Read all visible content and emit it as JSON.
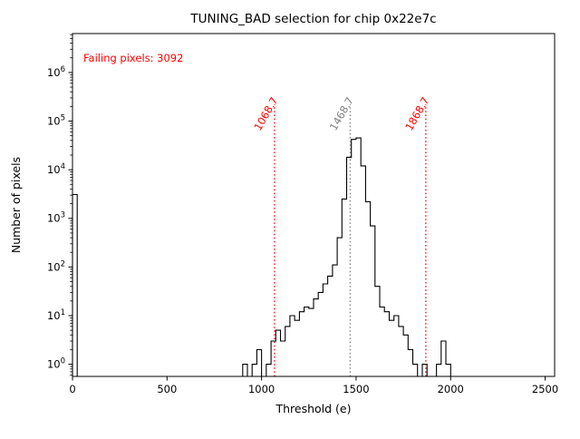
{
  "chart_data": {
    "type": "bar",
    "title": "TUNING_BAD selection for chip 0x22e7c",
    "xlabel": "Threshold (e)",
    "ylabel": "Number of pixels",
    "annotation": "Failing pixels: 3092",
    "failing_pixels": 3092,
    "xlim": [
      0,
      2550
    ],
    "ylog": true,
    "ylim_exponents": [
      -0.25,
      6.8
    ],
    "x_ticks": [
      0,
      500,
      1000,
      1500,
      2000,
      2500
    ],
    "y_tick_exponents": [
      0,
      1,
      2,
      3,
      4,
      5,
      6
    ],
    "grid": false,
    "legend": "none",
    "colors": {
      "hist": "#000000",
      "fail": "#ff0000",
      "center": "#808080",
      "annotation": "#ff0000"
    },
    "histogram": {
      "bin_width": 25,
      "bins": [
        [
          0,
          3092
        ],
        [
          900,
          1
        ],
        [
          950,
          1
        ],
        [
          975,
          2
        ],
        [
          1025,
          1
        ],
        [
          1050,
          3
        ],
        [
          1075,
          5
        ],
        [
          1100,
          3
        ],
        [
          1125,
          6
        ],
        [
          1150,
          10
        ],
        [
          1175,
          8
        ],
        [
          1200,
          12
        ],
        [
          1225,
          15
        ],
        [
          1250,
          14
        ],
        [
          1275,
          22
        ],
        [
          1300,
          30
        ],
        [
          1325,
          45
        ],
        [
          1350,
          65
        ],
        [
          1375,
          110
        ],
        [
          1400,
          400
        ],
        [
          1425,
          2500
        ],
        [
          1450,
          18000
        ],
        [
          1475,
          42000
        ],
        [
          1500,
          45000
        ],
        [
          1525,
          12000
        ],
        [
          1550,
          2200
        ],
        [
          1575,
          700
        ],
        [
          1600,
          40
        ],
        [
          1625,
          15
        ],
        [
          1650,
          12
        ],
        [
          1675,
          8
        ],
        [
          1700,
          10
        ],
        [
          1725,
          6
        ],
        [
          1750,
          4
        ],
        [
          1775,
          2
        ],
        [
          1800,
          1
        ],
        [
          1850,
          1
        ],
        [
          1925,
          1
        ],
        [
          1950,
          3
        ],
        [
          1975,
          1
        ]
      ]
    },
    "vlines": [
      {
        "name": "fail-low-threshold-line",
        "x": 1068.7,
        "label": "1068.7",
        "color": "#ff0000"
      },
      {
        "name": "center-threshold-line",
        "x": 1468.7,
        "label": "1468.7",
        "color": "#808080"
      },
      {
        "name": "fail-high-threshold-line",
        "x": 1868.7,
        "label": "1868.7",
        "color": "#ff0000"
      }
    ]
  }
}
